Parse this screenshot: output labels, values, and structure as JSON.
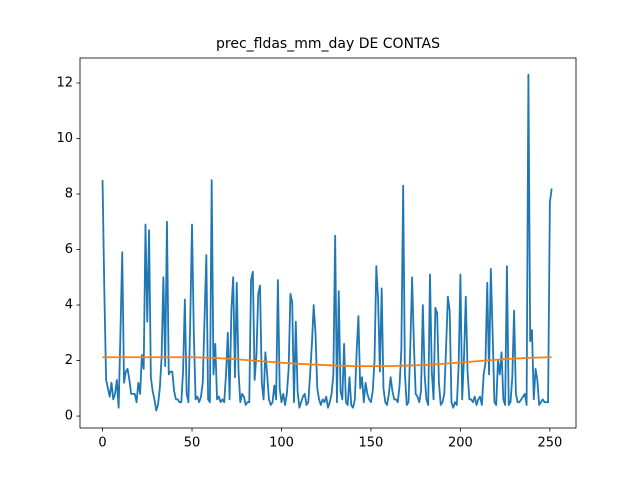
{
  "chart_data": {
    "type": "line",
    "title": "prec_fldas_mm_day DE CONTAS",
    "x": [
      0,
      1,
      2,
      3,
      4,
      5,
      6,
      7,
      8,
      9,
      10,
      11,
      12,
      13,
      14,
      15,
      16,
      17,
      18,
      19,
      20,
      21,
      22,
      23,
      24,
      25,
      26,
      27,
      28,
      29,
      30,
      31,
      32,
      33,
      34,
      35,
      36,
      37,
      38,
      39,
      40,
      41,
      42,
      43,
      44,
      45,
      46,
      47,
      48,
      49,
      50,
      51,
      52,
      53,
      54,
      55,
      56,
      57,
      58,
      59,
      60,
      61,
      62,
      63,
      64,
      65,
      66,
      67,
      68,
      69,
      70,
      71,
      72,
      73,
      74,
      75,
      76,
      77,
      78,
      79,
      80,
      81,
      82,
      83,
      84,
      85,
      86,
      87,
      88,
      89,
      90,
      91,
      92,
      93,
      94,
      95,
      96,
      97,
      98,
      99,
      100,
      101,
      102,
      103,
      104,
      105,
      106,
      107,
      108,
      109,
      110,
      111,
      112,
      113,
      114,
      115,
      116,
      117,
      118,
      119,
      120,
      121,
      122,
      123,
      124,
      125,
      126,
      127,
      128,
      129,
      130,
      131,
      132,
      133,
      134,
      135,
      136,
      137,
      138,
      139,
      140,
      141,
      142,
      143,
      144,
      145,
      146,
      147,
      148,
      149,
      150,
      151,
      152,
      153,
      154,
      155,
      156,
      157,
      158,
      159,
      160,
      161,
      162,
      163,
      164,
      165,
      166,
      167,
      168,
      169,
      170,
      171,
      172,
      173,
      174,
      175,
      176,
      177,
      178,
      179,
      180,
      181,
      182,
      183,
      184,
      185,
      186,
      187,
      188,
      189,
      190,
      191,
      192,
      193,
      194,
      195,
      196,
      197,
      198,
      199,
      200,
      201,
      202,
      203,
      204,
      205,
      206,
      207,
      208,
      209,
      210,
      211,
      212,
      213,
      214,
      215,
      216,
      217,
      218,
      219,
      220,
      221,
      222,
      223,
      224,
      225,
      226,
      227,
      228,
      229,
      230,
      231,
      232,
      233,
      234,
      235,
      236,
      237,
      238,
      239,
      240,
      241,
      242,
      243,
      244,
      245,
      246,
      247,
      248,
      249,
      250,
      251
    ],
    "series": [
      {
        "color": "#1f77b4",
        "values": [
          8.5,
          4.5,
          1.3,
          1.0,
          0.7,
          1.2,
          0.6,
          0.8,
          1.3,
          0.3,
          3.0,
          5.9,
          1.2,
          1.6,
          1.7,
          1.3,
          0.8,
          0.8,
          0.8,
          0.5,
          1.2,
          0.8,
          2.2,
          1.7,
          6.9,
          3.4,
          6.7,
          1.4,
          0.9,
          0.6,
          0.2,
          0.4,
          1.0,
          2.1,
          5.0,
          1.8,
          7.0,
          1.5,
          1.6,
          1.6,
          0.9,
          0.6,
          0.6,
          0.5,
          0.5,
          1.6,
          4.2,
          0.8,
          0.5,
          3.4,
          6.9,
          3.0,
          0.6,
          0.7,
          0.5,
          0.7,
          1.2,
          3.5,
          5.8,
          0.6,
          0.5,
          8.5,
          1.5,
          2.6,
          0.6,
          0.7,
          0.5,
          0.6,
          0.5,
          1.5,
          3.0,
          0.6,
          3.8,
          5.0,
          1.4,
          4.8,
          1.6,
          0.5,
          0.8,
          0.7,
          0.4,
          0.5,
          0.5,
          4.9,
          5.2,
          1.3,
          2.2,
          4.4,
          4.7,
          1.2,
          0.6,
          2.3,
          1.5,
          0.6,
          0.4,
          0.5,
          1.1,
          0.6,
          4.9,
          1.0,
          0.5,
          0.8,
          0.4,
          0.8,
          1.7,
          4.4,
          4.1,
          0.5,
          3.4,
          0.9,
          0.3,
          0.5,
          0.7,
          0.8,
          0.4,
          0.5,
          1.5,
          2.6,
          4.0,
          3.0,
          1.0,
          0.6,
          0.4,
          0.6,
          0.5,
          0.7,
          0.3,
          0.5,
          0.8,
          1.5,
          6.5,
          0.5,
          4.5,
          0.9,
          0.6,
          2.6,
          0.5,
          0.4,
          1.4,
          0.4,
          0.3,
          0.6,
          2.3,
          3.6,
          1.0,
          1.4,
          0.5,
          1.2,
          0.8,
          0.6,
          0.5,
          0.9,
          2.0,
          5.4,
          4.2,
          1.6,
          4.6,
          1.0,
          0.5,
          0.4,
          0.8,
          1.4,
          0.9,
          0.6,
          0.6,
          0.5,
          1.1,
          2.4,
          8.3,
          1.5,
          0.4,
          0.5,
          2.5,
          5.0,
          2.6,
          0.8,
          0.7,
          0.5,
          0.9,
          4.0,
          1.5,
          0.6,
          0.4,
          5.1,
          1.6,
          0.6,
          3.9,
          3.7,
          1.2,
          0.4,
          0.5,
          0.8,
          2.5,
          4.3,
          3.8,
          0.5,
          0.3,
          0.5,
          0.4,
          1.8,
          5.1,
          0.6,
          2.1,
          4.3,
          1.6,
          0.6,
          0.6,
          0.5,
          0.7,
          0.4,
          0.6,
          0.7,
          0.4,
          1.5,
          1.9,
          4.8,
          1.5,
          5.3,
          3.0,
          0.5,
          0.4,
          2.0,
          1.5,
          2.3,
          0.6,
          0.4,
          5.4,
          0.4,
          0.5,
          1.4,
          3.8,
          0.8,
          0.5,
          0.5,
          0.6,
          0.7,
          0.8,
          0.4,
          12.3,
          2.7,
          3.1,
          0.6,
          1.7,
          1.3,
          0.4,
          0.5,
          0.6,
          0.5,
          0.5,
          0.5,
          7.7,
          8.2
        ]
      },
      {
        "color": "#ff7f0e",
        "x": [
          0,
          10,
          20,
          30,
          40,
          50,
          60,
          70,
          80,
          90,
          100,
          110,
          120,
          130,
          140,
          150,
          160,
          170,
          180,
          190,
          200,
          210,
          220,
          230,
          240,
          250,
          251
        ],
        "values": [
          2.12,
          2.12,
          2.12,
          2.12,
          2.12,
          2.12,
          2.1,
          2.07,
          2.02,
          1.97,
          1.92,
          1.88,
          1.85,
          1.82,
          1.8,
          1.8,
          1.8,
          1.82,
          1.84,
          1.88,
          1.93,
          1.98,
          2.03,
          2.07,
          2.1,
          2.12,
          2.12
        ]
      }
    ],
    "xlim": [
      -12.6,
      264.6
    ],
    "ylim": [
      -0.43,
      12.9
    ],
    "xticks": [
      0,
      50,
      100,
      150,
      200,
      250
    ],
    "yticks": [
      0,
      2,
      4,
      6,
      8,
      10,
      12
    ]
  }
}
